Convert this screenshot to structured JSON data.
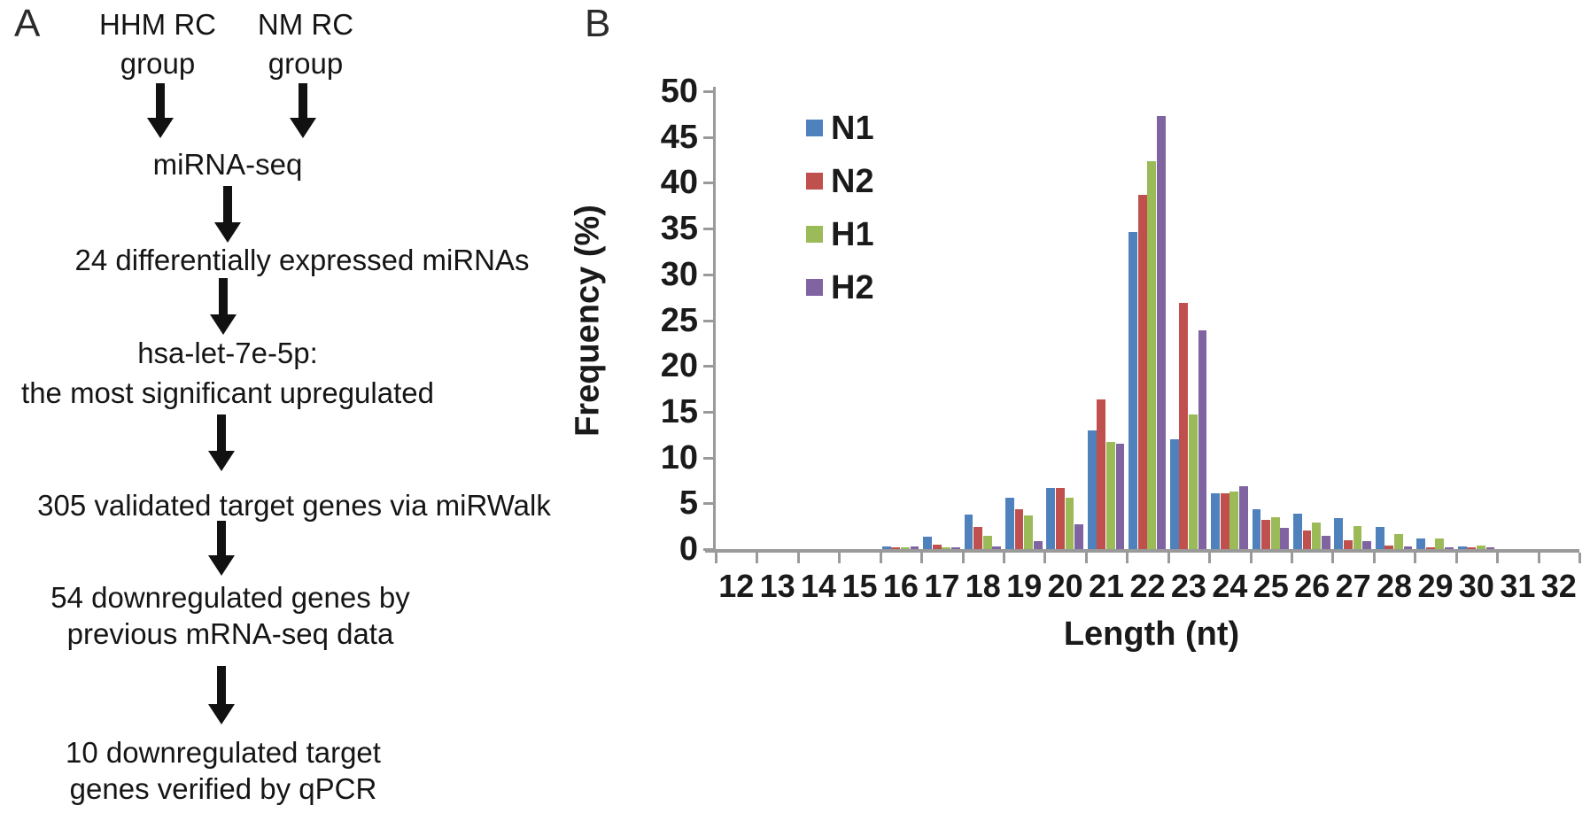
{
  "figure": {
    "panel_a_label": "A",
    "panel_b_label": "B"
  },
  "flowchart": {
    "source_groups": [
      {
        "line1": "HHM RC",
        "line2": "group"
      },
      {
        "line1": "NM RC",
        "line2": "group"
      }
    ],
    "steps": {
      "mirna_seq": "miRNA-seq",
      "diff_expressed": "24 differentially expressed miRNAs",
      "let7e_line1": "hsa-let-7e-5p:",
      "let7e_line2": "the most significant upregulated",
      "validated_targets": "305 validated target genes via miRWalk",
      "downregulated_line1": "54 downregulated genes by",
      "downregulated_line2": "previous mRNA-seq data",
      "qpcr_line1": "10 downregulated target",
      "qpcr_line2": "genes verified by qPCR"
    }
  },
  "chart_data": {
    "type": "bar",
    "title": "",
    "xlabel": "Length (nt)",
    "ylabel": "Frequency  (%)",
    "categories": [
      "12",
      "13",
      "14",
      "15",
      "16",
      "17",
      "18",
      "19",
      "20",
      "21",
      "22",
      "23",
      "24",
      "25",
      "26",
      "27",
      "28",
      "29",
      "30",
      "31",
      "32"
    ],
    "series": [
      {
        "name": "N1",
        "color": "#4f81bd",
        "values": [
          0,
          0,
          0,
          0,
          0.3,
          1.4,
          3.8,
          5.6,
          6.7,
          13.0,
          34.6,
          12.0,
          6.1,
          4.4,
          3.9,
          3.4,
          2.4,
          1.2,
          0.3,
          0,
          0
        ]
      },
      {
        "name": "N2",
        "color": "#c0504d",
        "values": [
          0,
          0,
          0,
          0,
          0.2,
          0.5,
          2.4,
          4.4,
          6.7,
          16.3,
          38.7,
          26.9,
          6.1,
          3.2,
          2.0,
          1.0,
          0.4,
          0.2,
          0.1,
          0,
          0
        ]
      },
      {
        "name": "H1",
        "color": "#9bbb59",
        "values": [
          0,
          0,
          0,
          0,
          0.1,
          0.2,
          1.5,
          3.7,
          5.6,
          11.7,
          42.4,
          14.7,
          6.3,
          3.5,
          2.9,
          2.5,
          1.6,
          1.2,
          0.4,
          0,
          0
        ]
      },
      {
        "name": "H2",
        "color": "#8064a2",
        "values": [
          0,
          0,
          0,
          0,
          0.3,
          0.1,
          0.3,
          0.9,
          2.7,
          11.5,
          47.3,
          23.9,
          6.9,
          2.3,
          1.5,
          0.9,
          0.3,
          0.2,
          0.05,
          0,
          0
        ]
      }
    ],
    "ylim": [
      0,
      50
    ],
    "ytick_step": 5,
    "grid": false,
    "legend_position": "upper-left-inside",
    "axis_color": "#9a9a9a"
  }
}
